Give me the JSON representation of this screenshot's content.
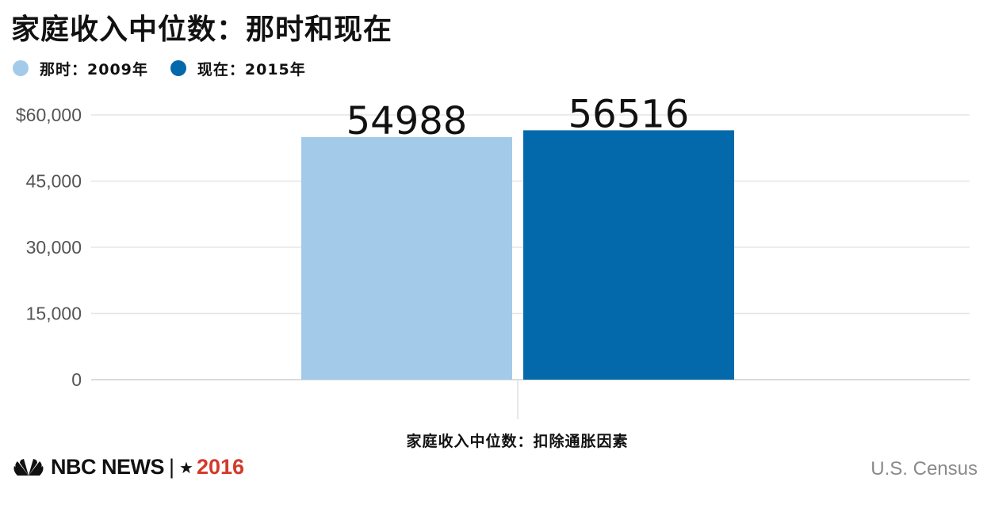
{
  "title": "家庭收入中位数：那时和现在",
  "legend": [
    {
      "label": "那时：2009年",
      "color": "#a3cbe9"
    },
    {
      "label": "现在：2015年",
      "color": "#0369ab"
    }
  ],
  "chart_data": {
    "type": "bar",
    "categories": [
      ""
    ],
    "series": [
      {
        "name": "那时：2009年",
        "values": [
          54988
        ],
        "color": "#a3cbe9"
      },
      {
        "name": "现在：2015年",
        "values": [
          56516
        ],
        "color": "#0369ab"
      }
    ],
    "title": "家庭收入中位数：那时和现在",
    "xlabel": "家庭收入中位数：扣除通胀因素",
    "ylabel": "",
    "ylim": [
      0,
      60000
    ],
    "yticks": [
      0,
      15000,
      30000,
      45000,
      60000
    ],
    "ytick_labels": [
      "0",
      "15,000",
      "30,000",
      "45,000",
      "$60,000"
    ],
    "data_labels": [
      "54988",
      "56516"
    ],
    "grid": true,
    "legend_position": "top-left"
  },
  "footer": {
    "brand": "NBC NEWS",
    "separator": "|",
    "year": "2016",
    "source": "U.S. Census"
  },
  "icons": {
    "logo": "nbc-peacock-icon",
    "star": "star-icon"
  }
}
